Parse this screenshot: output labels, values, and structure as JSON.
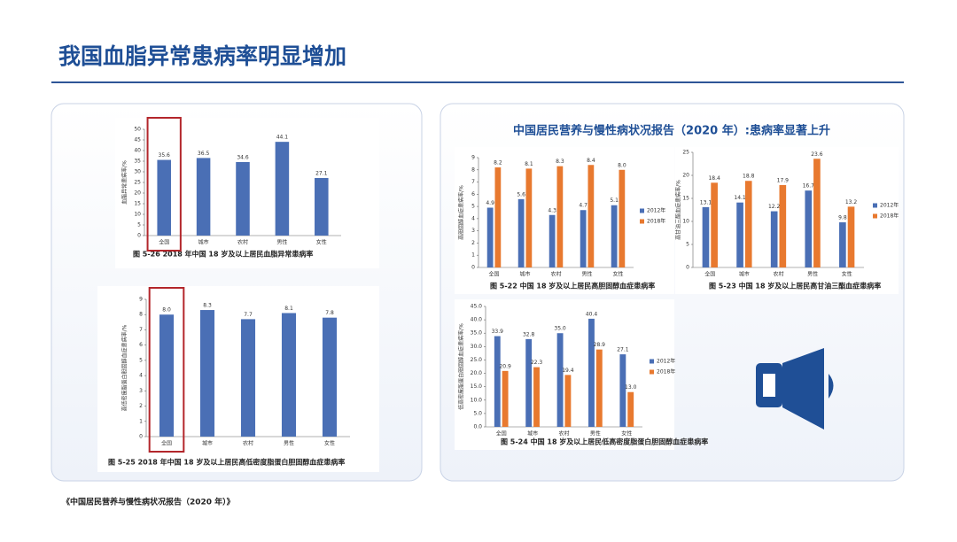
{
  "title": "我国血脂异常患病率明显增加",
  "panel_title": "中国居民营养与慢性病状况报告（2020 年）:患病率显著上升",
  "source": "《中国居民营养与慢性病状况报告（2020 年）》",
  "chart_data": [
    {
      "type": "bar",
      "title": "图 5-26   2018 年中国 18 岁及以上居民血脂异常患病率",
      "y_label": "血脂异常患病率/%",
      "categories": [
        "全国",
        "城市",
        "农村",
        "男性",
        "女性"
      ],
      "values": [
        35.6,
        36.5,
        34.6,
        44.1,
        27.1
      ],
      "value_labels": [
        "35.6",
        "36.5",
        "34.6",
        "44.1",
        "27.1"
      ],
      "color": "#4a6fb5",
      "ylim": [
        0,
        50
      ],
      "yticks": [
        0,
        5,
        10,
        15,
        20,
        25,
        30,
        35,
        40,
        45,
        50
      ]
    },
    {
      "type": "bar",
      "title": "图 5-25   2018 年中国 18 岁及以上居民高低密度脂蛋白胆固醇血症患病率",
      "y_label": "高低密度脂蛋白胆固醇血症患病率/%",
      "categories": [
        "全国",
        "城市",
        "农村",
        "男性",
        "女性"
      ],
      "values": [
        8.0,
        8.3,
        7.7,
        8.1,
        7.8
      ],
      "value_labels": [
        "8.0",
        "8.3",
        "7.7",
        "8.1",
        "7.8"
      ],
      "color": "#4a6fb5",
      "ylim": [
        0,
        9
      ],
      "yticks": [
        0,
        1,
        2,
        3,
        4,
        5,
        6,
        7,
        8,
        9
      ]
    },
    {
      "type": "bar",
      "title": "图 5-22   中国 18 岁及以上居民高胆固醇血症患病率",
      "y_label": "高胆固醇血症患病率/%",
      "categories": [
        "全国",
        "城市",
        "农村",
        "男性",
        "女性"
      ],
      "series": [
        {
          "name": "2012年",
          "color": "#4a6fb5",
          "values": [
            4.9,
            5.6,
            4.3,
            4.7,
            5.1
          ],
          "value_labels": [
            "4.9",
            "5.6",
            "4.3",
            "4.7",
            "5.1"
          ]
        },
        {
          "name": "2018年",
          "color": "#e8792f",
          "values": [
            8.2,
            8.1,
            8.3,
            8.4,
            8.0
          ],
          "value_labels": [
            "8.2",
            "8.1",
            "8.3",
            "8.4",
            "8.0"
          ]
        }
      ],
      "ylim": [
        0,
        9
      ],
      "yticks": [
        0,
        1,
        2,
        3,
        4,
        5,
        6,
        7,
        8,
        9
      ]
    },
    {
      "type": "bar",
      "title": "图 5-23   中国 18 岁及以上居民高甘油三酯血症患病率",
      "y_label": "高甘油三酯血症患病率/%",
      "categories": [
        "全国",
        "城市",
        "农村",
        "男性",
        "女性"
      ],
      "series": [
        {
          "name": "2012年",
          "color": "#4a6fb5",
          "values": [
            13.1,
            14.1,
            12.2,
            16.7,
            9.8
          ],
          "value_labels": [
            "13.1",
            "14.1",
            "12.2",
            "16.7",
            "9.8"
          ]
        },
        {
          "name": "2018年",
          "color": "#e8792f",
          "values": [
            18.4,
            18.8,
            17.9,
            23.6,
            13.2
          ],
          "value_labels": [
            "18.4",
            "18.8",
            "17.9",
            "23.6",
            "13.2"
          ]
        }
      ],
      "ylim": [
        0,
        25
      ],
      "yticks": [
        0,
        5,
        10,
        15,
        20,
        25
      ]
    },
    {
      "type": "bar",
      "title": "图 5-24   中国 18 岁及以上居民低高密度脂蛋白胆固醇血症患病率",
      "y_label": "低高密度脂蛋白胆固醇血症患病率/%",
      "categories": [
        "全国",
        "城市",
        "农村",
        "男性",
        "女性"
      ],
      "series": [
        {
          "name": "2012年",
          "color": "#4a6fb5",
          "values": [
            33.9,
            32.8,
            35.0,
            40.4,
            27.1
          ],
          "value_labels": [
            "33.9",
            "32.8",
            "35.0",
            "40.4",
            "27.1"
          ]
        },
        {
          "name": "2018年",
          "color": "#e8792f",
          "values": [
            20.9,
            22.3,
            19.4,
            28.9,
            13.0
          ],
          "value_labels": [
            "20.9",
            "22.3",
            "19.4",
            "28.9",
            "13.0"
          ]
        }
      ],
      "ylim": [
        0,
        45
      ],
      "yticks": [
        {
          "value": 0,
          "label": "0.0"
        },
        {
          "value": 5,
          "label": "5.0"
        },
        {
          "value": 10,
          "label": "10.0"
        },
        {
          "value": 15,
          "label": "15.0"
        },
        {
          "value": 20,
          "label": "20.0"
        },
        {
          "value": 25,
          "label": "25.0"
        },
        {
          "value": 30,
          "label": "30.0"
        },
        {
          "value": 35,
          "label": "35.0"
        },
        {
          "value": 40,
          "label": "40.0"
        },
        {
          "value": 45,
          "label": "45.0"
        }
      ]
    }
  ]
}
